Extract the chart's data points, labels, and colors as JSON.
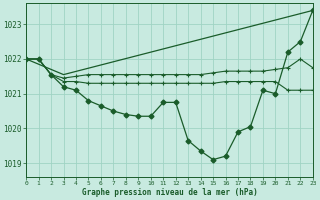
{
  "background_color": "#c8eae0",
  "grid_color": "#a0d4c4",
  "line_color": "#1a5c2a",
  "title": "Graphe pression niveau de la mer (hPa)",
  "xlim": [
    0,
    23
  ],
  "ylim": [
    1018.6,
    1023.6
  ],
  "yticks": [
    1019,
    1020,
    1021,
    1022,
    1023
  ],
  "xticks": [
    0,
    1,
    2,
    3,
    4,
    5,
    6,
    7,
    8,
    9,
    10,
    11,
    12,
    13,
    14,
    15,
    16,
    17,
    18,
    19,
    20,
    21,
    22,
    23
  ],
  "series_diagonal": {
    "x": [
      0,
      3,
      23
    ],
    "y": [
      1022.0,
      1021.55,
      1023.4
    ]
  },
  "series_upper_flat": {
    "x": [
      0,
      1,
      2,
      3,
      4,
      5,
      6,
      7,
      8,
      9,
      10,
      11,
      12,
      13,
      14,
      15,
      16,
      17,
      18,
      19,
      20,
      21,
      22,
      23
    ],
    "y": [
      1022.0,
      1022.0,
      1021.55,
      1021.45,
      1021.5,
      1021.55,
      1021.55,
      1021.55,
      1021.55,
      1021.55,
      1021.55,
      1021.55,
      1021.55,
      1021.55,
      1021.55,
      1021.6,
      1021.65,
      1021.65,
      1021.65,
      1021.65,
      1021.7,
      1021.75,
      1022.0,
      1021.75
    ]
  },
  "series_lower_flat": {
    "x": [
      0,
      1,
      2,
      3,
      4,
      5,
      6,
      7,
      8,
      9,
      10,
      11,
      12,
      13,
      14,
      15,
      16,
      17,
      18,
      19,
      20,
      21,
      22,
      23
    ],
    "y": [
      1022.0,
      1022.0,
      1021.55,
      1021.35,
      1021.35,
      1021.3,
      1021.3,
      1021.3,
      1021.3,
      1021.3,
      1021.3,
      1021.3,
      1021.3,
      1021.3,
      1021.3,
      1021.3,
      1021.35,
      1021.35,
      1021.35,
      1021.35,
      1021.35,
      1021.1,
      1021.1,
      1021.1
    ]
  },
  "series_main": {
    "x": [
      0,
      1,
      2,
      3,
      4,
      5,
      6,
      7,
      8,
      9,
      10,
      11,
      12,
      13,
      14,
      15,
      16,
      17,
      18,
      19,
      20,
      21,
      22,
      23
    ],
    "y": [
      1022.0,
      1022.0,
      1021.55,
      1021.2,
      1021.1,
      1020.8,
      1020.65,
      1020.5,
      1020.4,
      1020.35,
      1020.35,
      1020.75,
      1020.75,
      1019.65,
      1019.35,
      1019.1,
      1019.2,
      1019.9,
      1020.05,
      1021.1,
      1021.0,
      1022.2,
      1022.5,
      1023.4
    ]
  }
}
